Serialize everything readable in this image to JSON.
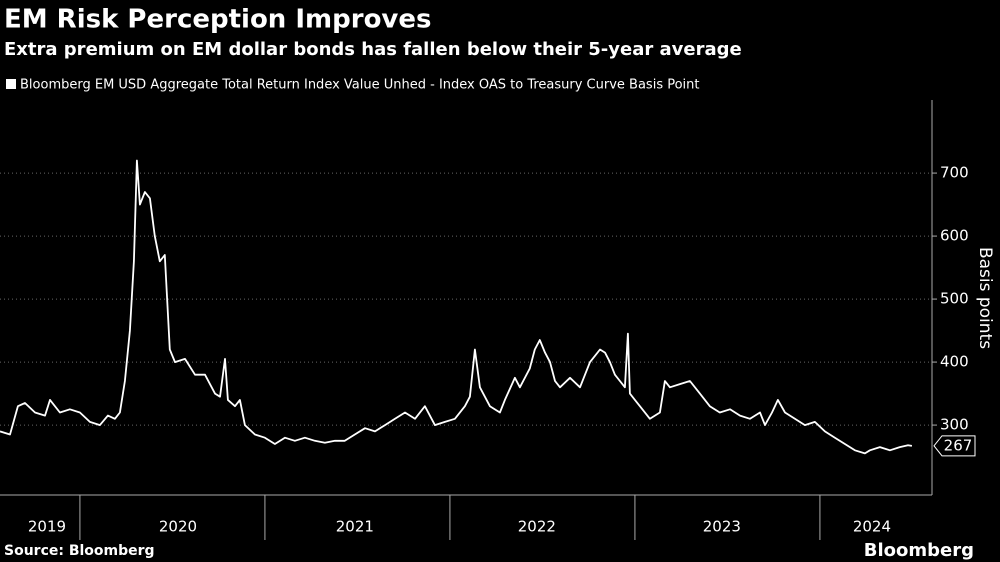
{
  "chart_data": {
    "type": "line",
    "title": "EM Risk Perception Improves",
    "subtitle": "Extra premium on EM dollar bonds has fallen below their 5-year average",
    "y_label": "Basis points",
    "source": "Source: Bloomberg",
    "brand": "Bloomberg",
    "legend": "top-left",
    "grid": true,
    "xlim": [
      2019.568,
      2024.595
    ],
    "ylim": [
      189,
      816
    ],
    "yticks": [
      300,
      400,
      500,
      600,
      700
    ],
    "xticks": [
      {
        "value": 2019.822,
        "label": "2019"
      },
      {
        "value": 2020.53,
        "label": "2020"
      },
      {
        "value": 2021.486,
        "label": "2021"
      },
      {
        "value": 2022.47,
        "label": "2022"
      },
      {
        "value": 2023.47,
        "label": "2023"
      },
      {
        "value": 2024.281,
        "label": "2024"
      }
    ],
    "x": [
      2019.568,
      2019.622,
      2019.665,
      2019.703,
      2019.757,
      2019.811,
      2019.838,
      2019.892,
      2019.946,
      2020.0,
      2020.054,
      2020.108,
      2020.151,
      2020.189,
      2020.216,
      2020.243,
      2020.27,
      2020.292,
      2020.308,
      2020.324,
      2020.351,
      2020.378,
      2020.405,
      2020.432,
      2020.459,
      2020.486,
      2020.514,
      2020.568,
      2020.622,
      2020.676,
      2020.73,
      2020.757,
      2020.784,
      2020.8,
      2020.838,
      2020.865,
      2020.892,
      2020.946,
      2021.0,
      2021.054,
      2021.108,
      2021.162,
      2021.216,
      2021.27,
      2021.324,
      2021.378,
      2021.432,
      2021.486,
      2021.541,
      2021.595,
      2021.649,
      2021.703,
      2021.757,
      2021.811,
      2021.865,
      2021.919,
      2021.973,
      2022.027,
      2022.081,
      2022.108,
      2022.135,
      2022.162,
      2022.216,
      2022.27,
      2022.297,
      2022.351,
      2022.378,
      2022.432,
      2022.459,
      2022.486,
      2022.514,
      2022.541,
      2022.568,
      2022.595,
      2022.649,
      2022.703,
      2022.757,
      2022.784,
      2022.811,
      2022.838,
      2022.865,
      2022.892,
      2022.919,
      2022.946,
      2022.962,
      2022.973,
      2023.027,
      2023.081,
      2023.135,
      2023.162,
      2023.189,
      2023.243,
      2023.297,
      2023.351,
      2023.405,
      2023.459,
      2023.514,
      2023.568,
      2023.622,
      2023.676,
      2023.703,
      2023.741,
      2023.773,
      2023.811,
      2023.865,
      2023.919,
      2023.973,
      2024.027,
      2024.081,
      2024.135,
      2024.189,
      2024.243,
      2024.27,
      2024.324,
      2024.378,
      2024.432,
      2024.476,
      2024.497
    ],
    "series": [
      {
        "name": "Bloomberg EM USD Aggregate Total Return Index Value Unhed - Index OAS to Treasury Curve Basis Point",
        "color": "#ffffff",
        "values": [
          290,
          285,
          330,
          335,
          320,
          315,
          340,
          320,
          325,
          320,
          305,
          300,
          315,
          310,
          320,
          370,
          450,
          560,
          720,
          650,
          670,
          660,
          600,
          560,
          570,
          420,
          400,
          405,
          380,
          380,
          350,
          345,
          405,
          340,
          330,
          340,
          300,
          285,
          280,
          270,
          280,
          275,
          280,
          275,
          272,
          275,
          275,
          285,
          295,
          290,
          300,
          310,
          320,
          310,
          330,
          300,
          305,
          310,
          330,
          345,
          420,
          360,
          330,
          320,
          340,
          375,
          360,
          390,
          420,
          435,
          415,
          400,
          370,
          360,
          375,
          360,
          400,
          410,
          420,
          415,
          400,
          380,
          370,
          360,
          445,
          350,
          330,
          310,
          320,
          370,
          360,
          365,
          370,
          350,
          330,
          320,
          325,
          315,
          310,
          320,
          300,
          320,
          340,
          320,
          310,
          300,
          305,
          290,
          280,
          270,
          260,
          255,
          260,
          265,
          260,
          265,
          268,
          267
        ]
      }
    ]
  }
}
